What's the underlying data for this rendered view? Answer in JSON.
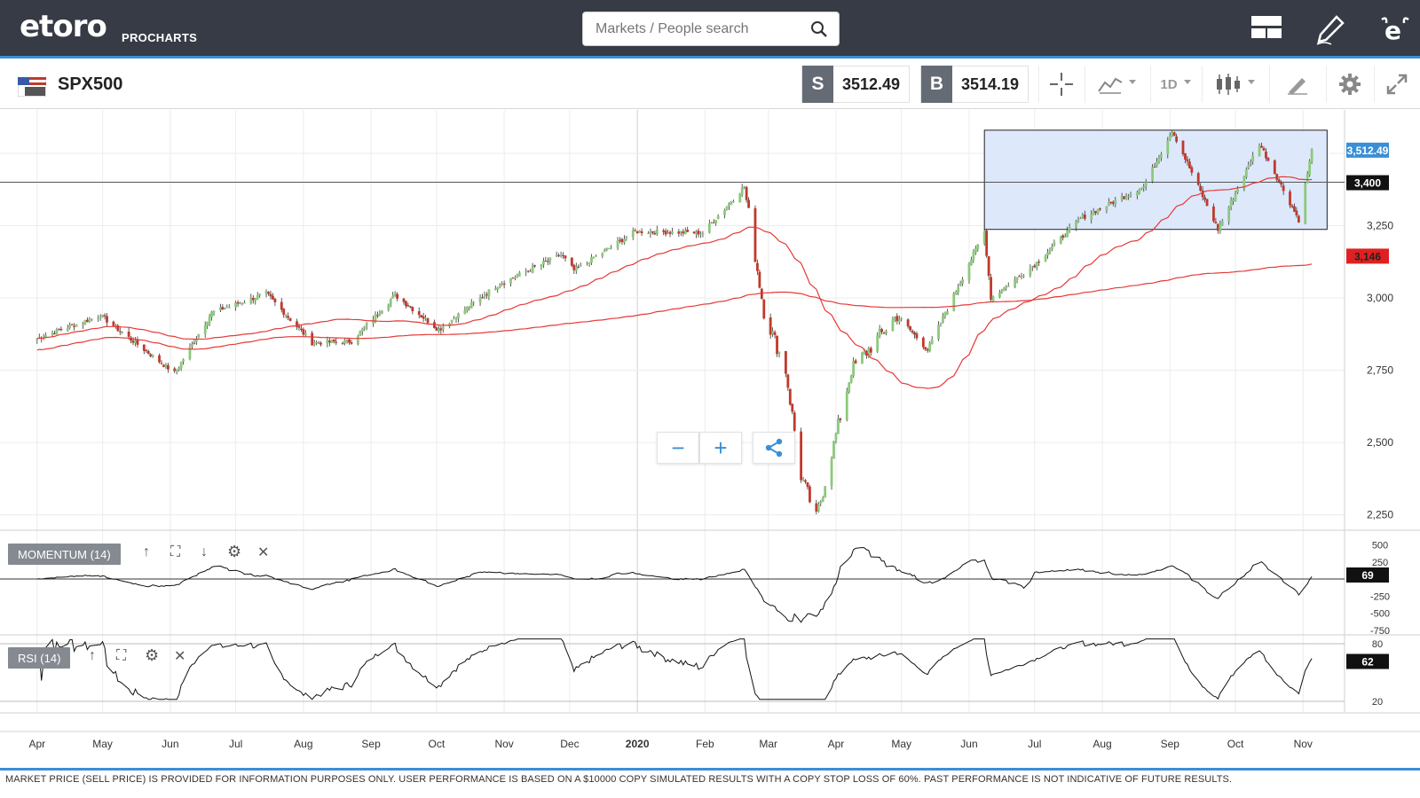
{
  "header": {
    "logo_text": "etoro",
    "logo_sub": "PROCHARTS",
    "search_placeholder": "Markets / People search",
    "icons": [
      "layout-icon",
      "pencil-icon",
      "etoro-e-icon"
    ]
  },
  "toolbar": {
    "symbol": "SPX500",
    "flag": "USA",
    "sell_label": "S",
    "sell_price": "3512.49",
    "buy_label": "B",
    "buy_price": "3514.19",
    "timeframe": "1D",
    "icons": [
      "crosshair-icon",
      "indicators-icon",
      "candles-icon",
      "drawing-icon",
      "settings-icon",
      "fullscreen-icon"
    ]
  },
  "chart_controls": {
    "zoom_out": "−",
    "zoom_in": "+"
  },
  "panels": {
    "momentum_label": "MOMENTUM (14)",
    "rsi_label": "RSI (14)"
  },
  "footer": {
    "disclaimer": "MARKET PRICE (SELL PRICE) IS PROVIDED FOR INFORMATION PURPOSES ONLY. USER PERFORMANCE IS BASED ON A $10000 COPY SIMULATED RESULTS WITH A COPY STOP LOSS OF 60%. PAST PERFORMANCE IS NOT INDICATIVE OF FUTURE RESULTS."
  },
  "colors": {
    "up": "#8cc97b",
    "down": "#c0392b",
    "ma": "#e53935",
    "accent": "#3a8fd6",
    "rect": "#dde8fb"
  },
  "chart_data": {
    "type": "line",
    "title": "SPX500",
    "x_ticks": [
      "Apr",
      "May",
      "Jun",
      "Jul",
      "Aug",
      "Sep",
      "Oct",
      "Nov",
      "Dec",
      "2020",
      "Feb",
      "Mar",
      "Apr",
      "May",
      "Jun",
      "Jul",
      "Aug",
      "Sep",
      "Oct",
      "Nov"
    ],
    "y_ticks": [
      "3,250",
      "3,000",
      "2,750",
      "2,500",
      "2,250"
    ],
    "ylim": [
      2200,
      3650
    ],
    "price_labels": {
      "last": "3,512.49",
      "hline": "3,400",
      "ma200": "3,146"
    },
    "close_series": [
      {
        "date": "2019-04-01",
        "value": 2860
      },
      {
        "date": "2019-04-30",
        "value": 2940
      },
      {
        "date": "2019-05-10",
        "value": 2880
      },
      {
        "date": "2019-06-03",
        "value": 2740
      },
      {
        "date": "2019-06-20",
        "value": 2950
      },
      {
        "date": "2019-07-15",
        "value": 3015
      },
      {
        "date": "2019-08-05",
        "value": 2845
      },
      {
        "date": "2019-08-23",
        "value": 2850
      },
      {
        "date": "2019-09-12",
        "value": 3010
      },
      {
        "date": "2019-10-02",
        "value": 2890
      },
      {
        "date": "2019-10-28",
        "value": 3040
      },
      {
        "date": "2019-11-27",
        "value": 3150
      },
      {
        "date": "2019-12-03",
        "value": 3095
      },
      {
        "date": "2019-12-31",
        "value": 3230
      },
      {
        "date": "2020-01-31",
        "value": 3225
      },
      {
        "date": "2020-02-19",
        "value": 3385
      },
      {
        "date": "2020-02-28",
        "value": 2955
      },
      {
        "date": "2020-03-09",
        "value": 2750
      },
      {
        "date": "2020-03-16",
        "value": 2385
      },
      {
        "date": "2020-03-23",
        "value": 2237
      },
      {
        "date": "2020-04-08",
        "value": 2750
      },
      {
        "date": "2020-04-29",
        "value": 2940
      },
      {
        "date": "2020-05-13",
        "value": 2820
      },
      {
        "date": "2020-06-08",
        "value": 3230
      },
      {
        "date": "2020-06-11",
        "value": 3000
      },
      {
        "date": "2020-07-01",
        "value": 3115
      },
      {
        "date": "2020-07-22",
        "value": 3275
      },
      {
        "date": "2020-08-20",
        "value": 3385
      },
      {
        "date": "2020-09-02",
        "value": 3580
      },
      {
        "date": "2020-09-23",
        "value": 3237
      },
      {
        "date": "2020-10-12",
        "value": 3535
      },
      {
        "date": "2020-10-30",
        "value": 3270
      },
      {
        "date": "2020-11-05",
        "value": 3510
      }
    ],
    "momentum": {
      "label": "MOMENTUM (14)",
      "y_ticks": [
        "500",
        "250",
        "-250",
        "-500",
        "-750"
      ],
      "last": "69"
    },
    "rsi": {
      "label": "RSI (14)",
      "y_ticks": [
        "80",
        "20"
      ],
      "last": "62"
    }
  }
}
